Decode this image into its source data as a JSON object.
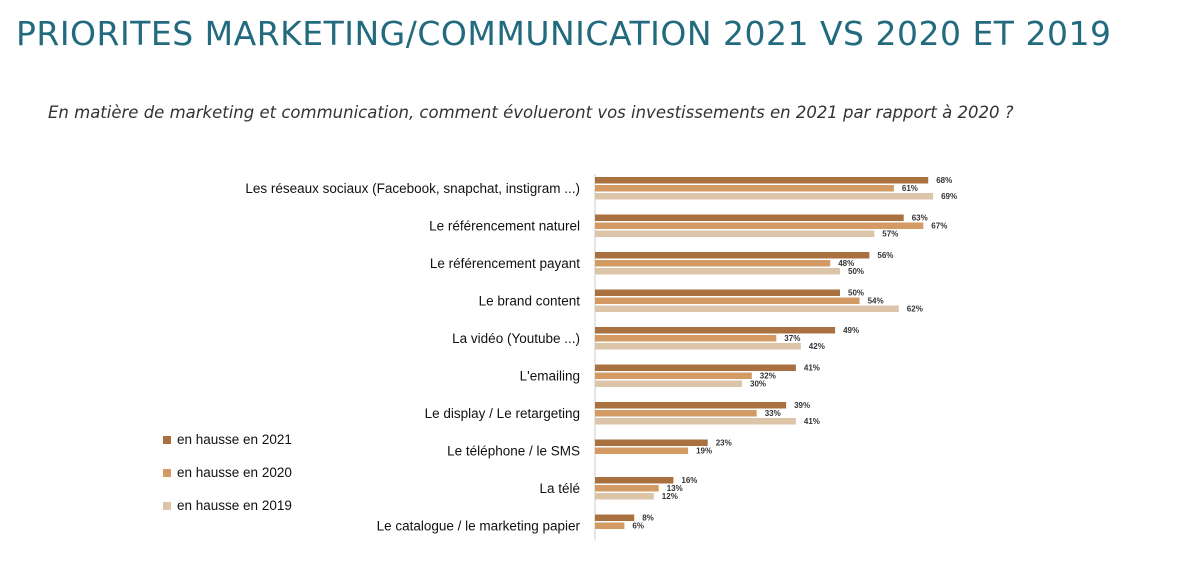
{
  "title": "PRIORITES MARKETING/COMMUNICATION  2021 VS 2020 ET 2019",
  "subtitle": "En matière de marketing et communication, comment  évolueront vos investissements en 2021 par rapport à 2020 ?",
  "chart_data": {
    "type": "bar",
    "orientation": "horizontal",
    "grid": false,
    "legend_position": "bottom-left",
    "value_format": "{v}%",
    "categories": [
      "Les réseaux sociaux (Facebook, snapchat, instigram ...)",
      "Le référencement naturel",
      "Le référencement payant",
      "Le brand content",
      "La vidéo (Youtube ...)",
      "L'emailing",
      "Le display / Le retargeting",
      "Le téléphone / le SMS",
      "La télé",
      "Le catalogue / le marketing papier"
    ],
    "series": [
      {
        "name": "en hausse en 2021",
        "color": "#a8713f",
        "values": [
          68,
          63,
          56,
          50,
          49,
          41,
          39,
          23,
          16,
          8
        ]
      },
      {
        "name": "en hausse en 2020",
        "color": "#d49a64",
        "values": [
          61,
          67,
          48,
          54,
          37,
          32,
          33,
          19,
          13,
          6
        ]
      },
      {
        "name": "en hausse en 2019",
        "color": "#dcc4a8",
        "values": [
          69,
          57,
          50,
          62,
          42,
          30,
          41,
          null,
          12,
          null
        ]
      }
    ]
  }
}
